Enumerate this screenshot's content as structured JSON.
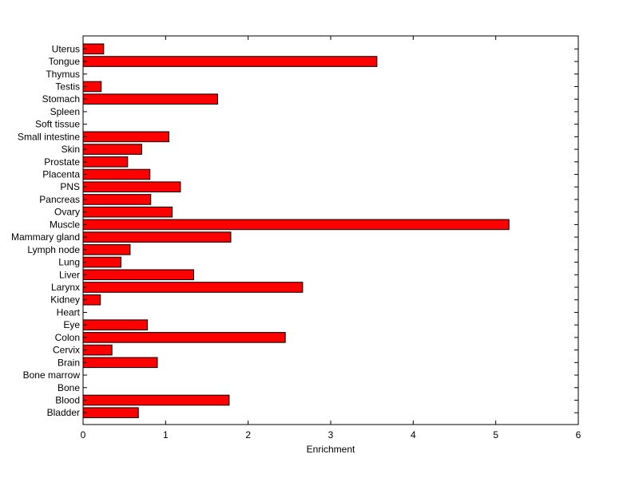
{
  "chart_data": {
    "type": "bar",
    "orientation": "horizontal",
    "title": "",
    "xlabel": "Enrichment",
    "ylabel": "",
    "xlim": [
      0,
      6
    ],
    "xticks": [
      "0",
      "1",
      "2",
      "3",
      "4",
      "5",
      "6"
    ],
    "grid": false,
    "legend": "none",
    "bar_color": "#ff0000",
    "categories": [
      "Bladder",
      "Blood",
      "Bone",
      "Bone marrow",
      "Brain",
      "Cervix",
      "Colon",
      "Eye",
      "Heart",
      "Kidney",
      "Larynx",
      "Liver",
      "Lung",
      "Lymph node",
      "Mammary gland",
      "Muscle",
      "Ovary",
      "Pancreas",
      "PNS",
      "Placenta",
      "Prostate",
      "Skin",
      "Small intestine",
      "Soft tissue",
      "Spleen",
      "Stomach",
      "Testis",
      "Thymus",
      "Tongue",
      "Uterus"
    ],
    "values": [
      0.67,
      1.77,
      0,
      0,
      0.9,
      0.35,
      2.45,
      0.78,
      0,
      0.21,
      2.66,
      1.34,
      0.46,
      0.57,
      1.79,
      5.16,
      1.08,
      0.82,
      1.18,
      0.81,
      0.54,
      0.71,
      1.04,
      0,
      0,
      1.63,
      0.22,
      0,
      3.56,
      0.25
    ]
  }
}
